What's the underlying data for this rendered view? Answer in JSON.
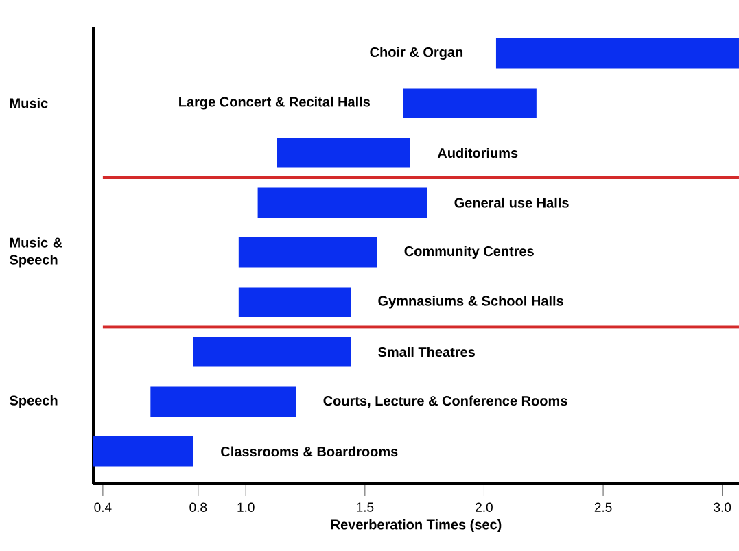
{
  "chart_data": {
    "type": "bar",
    "orientation": "horizontal",
    "color": "#0a2ff0",
    "categories": [
      "Choir & Organ",
      "Large Concert & Recital Halls",
      "Auditoriums",
      "General use Halls",
      "Community Centres",
      "Gymnasiums & School Halls",
      "Small Theatres",
      "Courts, Lecture & Conference Rooms",
      "Classrooms & Boardrooms"
    ],
    "base": [
      2.05,
      1.66,
      1.13,
      1.05,
      0.97,
      0.97,
      0.78,
      0.6,
      0.36
    ],
    "values": [
      1.02,
      0.56,
      0.56,
      0.71,
      0.58,
      0.47,
      0.66,
      0.61,
      0.42
    ],
    "xlim": [
      0.36,
      3.07
    ],
    "xticks": [
      0.4,
      0.8,
      {
        "value": 1.0,
        "label": "1.0"
      },
      1.5,
      {
        "value": 2.0,
        "label": "2.0"
      },
      2.5,
      {
        "value": 3.0,
        "label": "3.0"
      }
    ],
    "xlabel": "Reverberation Times (sec)",
    "annotations": [
      "Music",
      "Music & Speech",
      "Speech"
    ]
  }
}
